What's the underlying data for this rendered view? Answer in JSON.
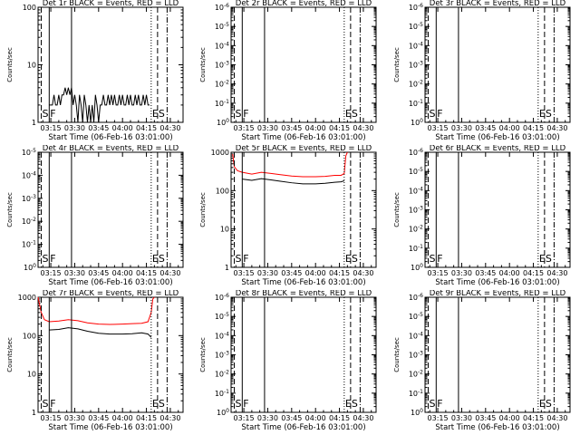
{
  "chart_data": [
    {
      "type": "line",
      "title": "Det 1r BLACK = Events, RED = LLD",
      "xlabel": "Start Time (06-Feb-16 03:01:00)",
      "ylabel": "Counts/sec",
      "yscale": "log",
      "ylim": [
        1,
        100
      ],
      "yticks": [
        "1",
        "10",
        "100"
      ],
      "xlim": [
        "03:07",
        "04:38"
      ],
      "xticks": [
        "03:15",
        "03:30",
        "03:45",
        "04:00",
        "04:15",
        "04:30"
      ],
      "markers": [
        {
          "label": "S",
          "time": "03:09",
          "style": "dashed"
        },
        {
          "label": "F",
          "time": "03:14",
          "style": "solid"
        },
        {
          "label": "",
          "time": "03:28",
          "style": "solid"
        },
        {
          "label": "E",
          "time": "04:18",
          "style": "dotted"
        },
        {
          "label": "S",
          "time": "04:22",
          "style": "dashed"
        },
        {
          "label": "",
          "time": "04:28",
          "style": "dashdot"
        }
      ],
      "series": [
        {
          "name": "BLACK",
          "color": "#000000",
          "x": [
            "03:14",
            "03:15",
            "03:16",
            "03:17",
            "03:18",
            "03:19",
            "03:20",
            "03:21",
            "03:22",
            "03:23",
            "03:24",
            "03:25",
            "03:26",
            "03:27",
            "03:28",
            "03:29",
            "03:30",
            "03:31",
            "03:32",
            "03:33",
            "03:34",
            "03:35",
            "03:36",
            "03:37",
            "03:38",
            "03:39",
            "03:40",
            "03:41",
            "03:42",
            "03:43",
            "03:44",
            "03:45",
            "03:46",
            "03:47",
            "03:48",
            "03:49",
            "03:50",
            "03:51",
            "03:52",
            "03:53",
            "03:54",
            "03:55",
            "03:56",
            "03:57",
            "03:58",
            "03:59",
            "04:00",
            "04:01",
            "04:02",
            "04:03",
            "04:04",
            "04:05",
            "04:06",
            "04:07",
            "04:08",
            "04:09",
            "04:10",
            "04:11",
            "04:12",
            "04:13",
            "04:14",
            "04:15",
            "04:16",
            "04:17"
          ],
          "y": [
            2,
            2,
            2,
            3,
            2,
            2,
            3,
            2,
            3,
            3,
            4,
            3,
            4,
            3,
            4,
            2,
            3,
            2,
            1,
            3,
            2,
            1,
            3,
            2,
            1,
            2,
            1,
            2,
            1,
            3,
            2,
            1,
            2,
            2,
            3,
            2,
            2,
            3,
            2,
            3,
            2,
            3,
            2,
            2,
            3,
            2,
            3,
            2,
            2,
            3,
            2,
            3,
            2,
            2,
            3,
            2,
            3,
            2,
            2,
            3,
            2,
            3,
            2,
            2
          ]
        }
      ]
    },
    {
      "type": "line",
      "title": "Det 2r BLACK = Events, RED = LLD",
      "xlabel": "Start Time (06-Feb-16 03:01:00)",
      "ylabel": "Counts/sec",
      "yscale": "log",
      "ylim": [
        1,
        1000000
      ],
      "yticks": [
        "10^0",
        "10^-1",
        "10^-2",
        "10^-3",
        "10^-4",
        "10^-5",
        "10^-6"
      ],
      "xlim": [
        "03:07",
        "04:38"
      ],
      "xticks": [
        "03:15",
        "03:30",
        "03:45",
        "04:00",
        "04:15",
        "04:30"
      ],
      "markers": [
        {
          "label": "S",
          "time": "03:09",
          "style": "dashed"
        },
        {
          "label": "F",
          "time": "03:14",
          "style": "solid"
        },
        {
          "label": "",
          "time": "03:28",
          "style": "solid"
        },
        {
          "label": "E",
          "time": "04:18",
          "style": "dotted"
        },
        {
          "label": "S",
          "time": "04:22",
          "style": "dashed"
        },
        {
          "label": "",
          "time": "04:28",
          "style": "dashdot"
        }
      ],
      "series": []
    },
    {
      "type": "line",
      "title": "Det 3r BLACK = Events, RED = LLD",
      "xlabel": "Start Time (06-Feb-16 03:01:00)",
      "ylabel": "Counts/sec",
      "yscale": "log",
      "ylim": [
        1,
        1000000
      ],
      "yticks": [
        "10^0",
        "10^-1",
        "10^-2",
        "10^-3",
        "10^-4",
        "10^-5",
        "10^-6"
      ],
      "xlim": [
        "03:07",
        "04:38"
      ],
      "xticks": [
        "03:15",
        "03:30",
        "03:45",
        "04:00",
        "04:15",
        "04:30"
      ],
      "markers": [
        {
          "label": "S",
          "time": "03:09",
          "style": "dashed"
        },
        {
          "label": "F",
          "time": "03:14",
          "style": "solid"
        },
        {
          "label": "",
          "time": "03:28",
          "style": "solid"
        },
        {
          "label": "E",
          "time": "04:18",
          "style": "dotted"
        },
        {
          "label": "S",
          "time": "04:22",
          "style": "dashed"
        },
        {
          "label": "",
          "time": "04:28",
          "style": "dashdot"
        }
      ],
      "series": []
    },
    {
      "type": "line",
      "title": "Det 4r BLACK = Events, RED = LLD",
      "xlabel": "Start Time (06-Feb-16 03:01:00)",
      "ylabel": "Counts/sec",
      "yscale": "log",
      "ylim": [
        1,
        100000
      ],
      "yticks": [
        "10^0",
        "10^-1",
        "10^-2",
        "10^-3",
        "10^-4",
        "10^-5"
      ],
      "xlim": [
        "03:07",
        "04:38"
      ],
      "xticks": [
        "03:15",
        "03:30",
        "03:45",
        "04:00",
        "04:15",
        "04:30"
      ],
      "markers": [
        {
          "label": "S",
          "time": "03:09",
          "style": "dashed"
        },
        {
          "label": "F",
          "time": "03:14",
          "style": "solid"
        },
        {
          "label": "",
          "time": "03:28",
          "style": "solid"
        },
        {
          "label": "E",
          "time": "04:18",
          "style": "dotted"
        },
        {
          "label": "S",
          "time": "04:22",
          "style": "dashed"
        },
        {
          "label": "",
          "time": "04:28",
          "style": "dashdot"
        }
      ],
      "series": []
    },
    {
      "type": "line",
      "title": "Det 5r BLACK = Events, RED = LLD",
      "xlabel": "Start Time (06-Feb-16 03:01:00)",
      "ylabel": "Counts/sec",
      "yscale": "log",
      "ylim": [
        1,
        1000
      ],
      "yticks": [
        "1",
        "10",
        "100",
        "1000"
      ],
      "xlim": [
        "03:07",
        "04:38"
      ],
      "xticks": [
        "03:15",
        "03:30",
        "03:45",
        "04:00",
        "04:15",
        "04:30"
      ],
      "markers": [
        {
          "label": "S",
          "time": "03:09",
          "style": "dashed"
        },
        {
          "label": "F",
          "time": "03:14",
          "style": "solid"
        },
        {
          "label": "",
          "time": "03:28",
          "style": "solid"
        },
        {
          "label": "E",
          "time": "04:18",
          "style": "dotted"
        },
        {
          "label": "S",
          "time": "04:22",
          "style": "dashed"
        },
        {
          "label": "",
          "time": "04:28",
          "style": "dashdot"
        }
      ],
      "series": [
        {
          "name": "RED",
          "color": "#ff0000",
          "x": [
            "03:08",
            "03:09",
            "03:11",
            "03:14",
            "03:20",
            "03:26",
            "03:32",
            "03:38",
            "03:45",
            "03:52",
            "04:00",
            "04:06",
            "04:12",
            "04:16",
            "04:18",
            "04:19",
            "04:20"
          ],
          "y": [
            900,
            420,
            330,
            300,
            270,
            300,
            280,
            260,
            240,
            230,
            230,
            235,
            250,
            250,
            280,
            800,
            1000
          ]
        },
        {
          "name": "BLACK",
          "color": "#000000",
          "x": [
            "03:14",
            "03:20",
            "03:26",
            "03:32",
            "03:38",
            "03:45",
            "03:52",
            "04:00",
            "04:06",
            "04:12",
            "04:16",
            "04:18"
          ],
          "y": [
            200,
            185,
            205,
            190,
            175,
            160,
            150,
            150,
            155,
            165,
            170,
            180
          ]
        }
      ]
    },
    {
      "type": "line",
      "title": "Det 6r BLACK = Events, RED = LLD",
      "xlabel": "Start Time (06-Feb-16 03:01:00)",
      "ylabel": "Counts/sec",
      "yscale": "log",
      "ylim": [
        1,
        1000000
      ],
      "yticks": [
        "10^0",
        "10^-1",
        "10^-2",
        "10^-3",
        "10^-4",
        "10^-5",
        "10^-6"
      ],
      "xlim": [
        "03:07",
        "04:38"
      ],
      "xticks": [
        "03:15",
        "03:30",
        "03:45",
        "04:00",
        "04:15",
        "04:30"
      ],
      "markers": [
        {
          "label": "S",
          "time": "03:09",
          "style": "dashed"
        },
        {
          "label": "F",
          "time": "03:14",
          "style": "solid"
        },
        {
          "label": "",
          "time": "03:28",
          "style": "solid"
        },
        {
          "label": "E",
          "time": "04:18",
          "style": "dotted"
        },
        {
          "label": "S",
          "time": "04:22",
          "style": "dashed"
        },
        {
          "label": "",
          "time": "04:28",
          "style": "dashdot"
        }
      ],
      "series": []
    },
    {
      "type": "line",
      "title": "Det 7r BLACK = Events, RED = LLD",
      "xlabel": "Start Time (06-Feb-16 03:01:00)",
      "ylabel": "Counts/sec",
      "yscale": "log",
      "ylim": [
        1,
        1000
      ],
      "yticks": [
        "1",
        "10",
        "100",
        "1000"
      ],
      "xlim": [
        "03:07",
        "04:38"
      ],
      "xticks": [
        "03:15",
        "03:30",
        "03:45",
        "04:00",
        "04:15",
        "04:30"
      ],
      "markers": [
        {
          "label": "S",
          "time": "03:09",
          "style": "dashed"
        },
        {
          "label": "F",
          "time": "03:14",
          "style": "solid"
        },
        {
          "label": "",
          "time": "03:28",
          "style": "solid"
        },
        {
          "label": "E",
          "time": "04:18",
          "style": "dotted"
        },
        {
          "label": "S",
          "time": "04:22",
          "style": "dashed"
        },
        {
          "label": "",
          "time": "04:28",
          "style": "dashdot"
        }
      ],
      "series": [
        {
          "name": "RED",
          "color": "#ff0000",
          "x": [
            "03:07",
            "03:09",
            "03:11",
            "03:14",
            "03:20",
            "03:26",
            "03:32",
            "03:38",
            "03:45",
            "03:52",
            "04:00",
            "04:06",
            "04:12",
            "04:16",
            "04:18",
            "04:19",
            "04:20"
          ],
          "y": [
            1000,
            400,
            260,
            230,
            240,
            260,
            245,
            215,
            200,
            195,
            200,
            205,
            210,
            230,
            400,
            900,
            1000
          ]
        },
        {
          "name": "BLACK",
          "color": "#000000",
          "x": [
            "03:14",
            "03:20",
            "03:26",
            "03:32",
            "03:38",
            "03:45",
            "03:52",
            "04:00",
            "04:06",
            "04:12",
            "04:16",
            "04:18"
          ],
          "y": [
            140,
            145,
            160,
            150,
            130,
            115,
            110,
            110,
            112,
            118,
            110,
            90
          ]
        }
      ]
    },
    {
      "type": "line",
      "title": "Det 8r BLACK = Events, RED = LLD",
      "xlabel": "Start Time (06-Feb-16 03:01:00)",
      "ylabel": "Counts/sec",
      "yscale": "log",
      "ylim": [
        1,
        1000000
      ],
      "yticks": [
        "10^0",
        "10^-1",
        "10^-2",
        "10^-3",
        "10^-4",
        "10^-5",
        "10^-6"
      ],
      "xlim": [
        "03:07",
        "04:38"
      ],
      "xticks": [
        "03:15",
        "03:30",
        "03:45",
        "04:00",
        "04:15",
        "04:30"
      ],
      "markers": [
        {
          "label": "S",
          "time": "03:09",
          "style": "dashed"
        },
        {
          "label": "F",
          "time": "03:14",
          "style": "solid"
        },
        {
          "label": "",
          "time": "03:28",
          "style": "solid"
        },
        {
          "label": "E",
          "time": "04:18",
          "style": "dotted"
        },
        {
          "label": "S",
          "time": "04:22",
          "style": "dashed"
        },
        {
          "label": "",
          "time": "04:28",
          "style": "dashdot"
        }
      ],
      "series": []
    },
    {
      "type": "line",
      "title": "Det 9r BLACK = Events, RED = LLD",
      "xlabel": "Start Time (06-Feb-16 03:01:00)",
      "ylabel": "Counts/sec",
      "yscale": "log",
      "ylim": [
        1,
        1000000
      ],
      "yticks": [
        "10^0",
        "10^-1",
        "10^-2",
        "10^-3",
        "10^-4",
        "10^-5",
        "10^-6"
      ],
      "xlim": [
        "03:07",
        "04:38"
      ],
      "xticks": [
        "03:15",
        "03:30",
        "03:45",
        "04:00",
        "04:15",
        "04:30"
      ],
      "markers": [
        {
          "label": "S",
          "time": "03:09",
          "style": "dashed"
        },
        {
          "label": "F",
          "time": "03:14",
          "style": "solid"
        },
        {
          "label": "",
          "time": "03:28",
          "style": "solid"
        },
        {
          "label": "E",
          "time": "04:18",
          "style": "dotted"
        },
        {
          "label": "S",
          "time": "04:22",
          "style": "dashed"
        },
        {
          "label": "",
          "time": "04:28",
          "style": "dashdot"
        }
      ],
      "series": []
    }
  ]
}
